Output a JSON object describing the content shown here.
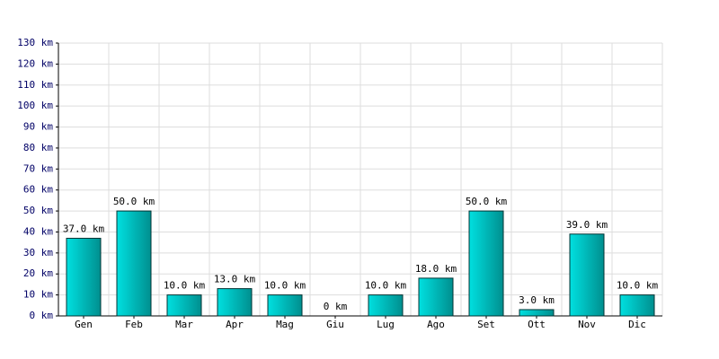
{
  "chart_data": {
    "type": "bar",
    "categories": [
      "Gen",
      "Feb",
      "Mar",
      "Apr",
      "Mag",
      "Giu",
      "Lug",
      "Ago",
      "Set",
      "Ott",
      "Nov",
      "Dic"
    ],
    "values": [
      37,
      50,
      10,
      13,
      10,
      0,
      10,
      18,
      50,
      3,
      39,
      10
    ],
    "value_labels": [
      "37.0 km",
      "50.0 km",
      "10.0 km",
      "13.0 km",
      "10.0 km",
      "0 km",
      "10.0 km",
      "18.0 km",
      "50.0 km",
      "3.0 km",
      "39.0 km",
      "10.0 km"
    ],
    "color": "#00e0e0",
    "ylim": [
      0,
      130
    ],
    "yticks": [
      {
        "value": 0,
        "label": "0 km"
      },
      {
        "value": 10,
        "label": "10 km"
      },
      {
        "value": 20,
        "label": "20 km"
      },
      {
        "value": 30,
        "label": "30 km"
      },
      {
        "value": 40,
        "label": "40 km"
      },
      {
        "value": 50,
        "label": "50 km"
      },
      {
        "value": 60,
        "label": "60 km"
      },
      {
        "value": 70,
        "label": "70 km"
      },
      {
        "value": 80,
        "label": "80 km"
      },
      {
        "value": 90,
        "label": "90 km"
      },
      {
        "value": 100,
        "label": "100 km"
      },
      {
        "value": 110,
        "label": "110 km"
      },
      {
        "value": 120,
        "label": "120 km"
      },
      {
        "value": 130,
        "label": "130 km"
      }
    ],
    "grid": true
  }
}
